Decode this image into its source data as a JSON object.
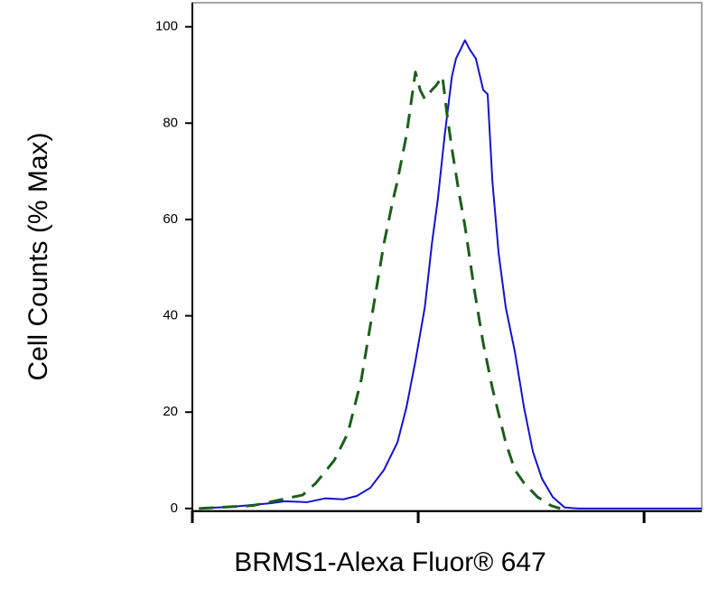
{
  "chart_data": {
    "type": "line",
    "x_label": "BRMS1-Alexa Fluor® 647",
    "y_label": "Cell Counts (% Max)",
    "xscale": "log",
    "xlim": [
      1,
      180
    ],
    "xticks": [
      1,
      10,
      100
    ],
    "ylim": [
      -0.4,
      105
    ],
    "yticks": [
      0,
      20,
      40,
      60,
      80,
      100
    ],
    "series": [
      {
        "color": "#1414c8",
        "dashed": false,
        "x": [
          1.07,
          1.54,
          2.23,
          2.56,
          3.22,
          3.87,
          4.66,
          5.35,
          6.14,
          7.05,
          8.09,
          8.87,
          9.72,
          10.7,
          11.5,
          12.2,
          13.1,
          14.1,
          14.7,
          15.4,
          16.1,
          16.9,
          18.0,
          19.4,
          20.3,
          21.3,
          22.7,
          24.4,
          26.8,
          29.4,
          32.2,
          35.3,
          39.4,
          44.5,
          51.1,
          180
        ],
        "values": [
          0,
          0.4,
          1.1,
          1.5,
          1.3,
          2.1,
          1.9,
          2.6,
          4.3,
          8,
          13.7,
          21,
          30.6,
          41.8,
          55,
          64,
          77.5,
          89.7,
          93.4,
          95.3,
          97.2,
          95.3,
          93.4,
          86.9,
          86,
          68,
          53,
          41.8,
          32.5,
          21,
          11.8,
          6.2,
          2.4,
          0.2,
          0,
          0
        ]
      },
      {
        "color": "#1b5e1b",
        "dashed": true,
        "x": [
          1.07,
          1.85,
          2.56,
          3.08,
          3.53,
          4.25,
          4.88,
          5.6,
          6.43,
          7.05,
          7.73,
          8.09,
          8.87,
          9.72,
          10.2,
          10.7,
          11.5,
          12.0,
          12.8,
          13.4,
          14.1,
          15.1,
          16.1,
          17.7,
          19.4,
          21.3,
          24.4,
          26.8,
          29.4,
          33.7,
          38.7,
          42.5
        ],
        "values": [
          0,
          0.6,
          2,
          2.8,
          5.3,
          10,
          15.6,
          26.8,
          43.7,
          55,
          64,
          68,
          77.5,
          90.6,
          86.9,
          85,
          86.9,
          87.8,
          89.7,
          82,
          74.7,
          66,
          58.7,
          45.6,
          34.3,
          25,
          13.7,
          8,
          5.3,
          2.4,
          0.6,
          0
        ]
      }
    ]
  }
}
